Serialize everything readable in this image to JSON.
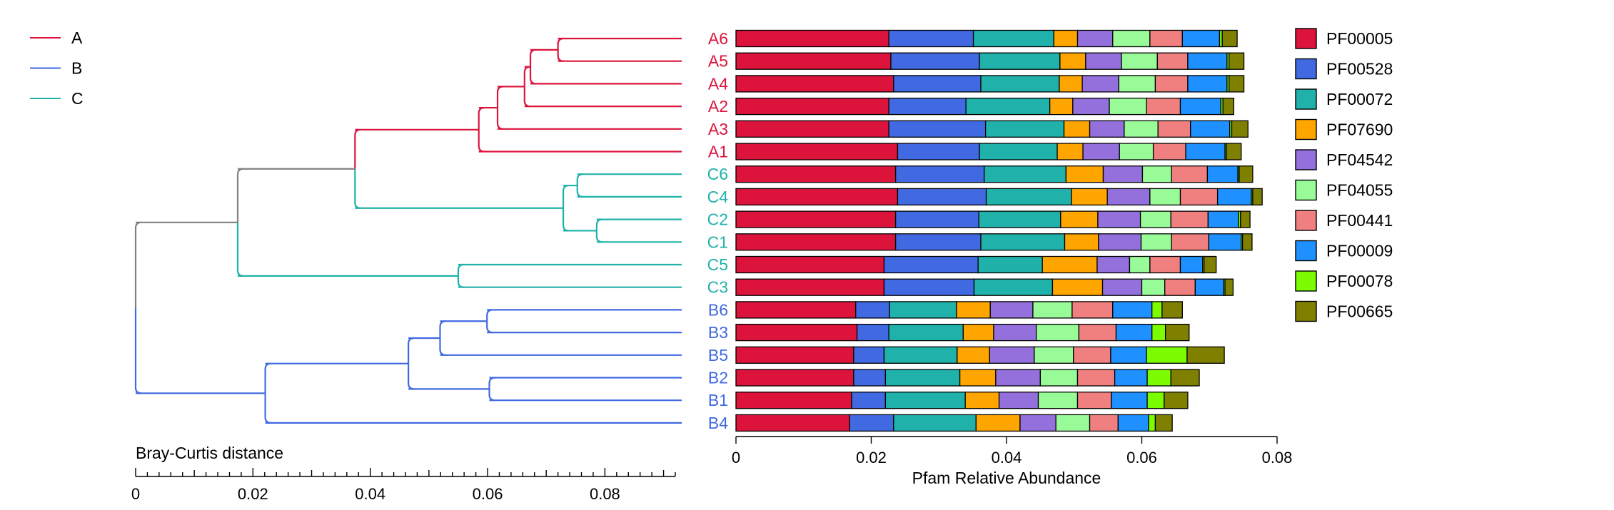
{
  "chart_data": [
    {
      "type": "dendrogram",
      "xlabel": "Bray-Curtis distance",
      "xlim": [
        0,
        0.092
      ],
      "xticks": [
        0,
        0.02,
        0.04,
        0.06,
        0.08
      ],
      "legend": {
        "position": "top-left",
        "entries": [
          {
            "name": "A",
            "color": "#DC143C"
          },
          {
            "name": "B",
            "color": "#4169E1"
          },
          {
            "name": "C",
            "color": "#20B2AA"
          }
        ]
      },
      "leaves": [
        "A6",
        "A5",
        "A4",
        "A2",
        "A3",
        "A1",
        "C6",
        "C4",
        "C2",
        "C1",
        "C5",
        "C3",
        "B6",
        "B3",
        "B5",
        "B2",
        "B1",
        "B4"
      ],
      "leaf_groups": [
        "A",
        "A",
        "A",
        "A",
        "A",
        "A",
        "C",
        "C",
        "C",
        "C",
        "C",
        "C",
        "B",
        "B",
        "B",
        "B",
        "B",
        "B"
      ],
      "merges": [
        {
          "id": "m1",
          "children": [
            "A6",
            "A5"
          ],
          "height": 0.072,
          "group": "A"
        },
        {
          "id": "m2",
          "children": [
            "m1",
            "A4"
          ],
          "height": 0.0673,
          "group": "A"
        },
        {
          "id": "m3",
          "children": [
            "m2",
            "A2"
          ],
          "height": 0.0663,
          "group": "A"
        },
        {
          "id": "m4",
          "children": [
            "m3",
            "A3"
          ],
          "height": 0.0617,
          "group": "A"
        },
        {
          "id": "m5",
          "children": [
            "m4",
            "A1"
          ],
          "height": 0.0585,
          "group": "A"
        },
        {
          "id": "m6",
          "children": [
            "C6",
            "C4"
          ],
          "height": 0.0753,
          "group": "C"
        },
        {
          "id": "m7",
          "children": [
            "C2",
            "C1"
          ],
          "height": 0.0786,
          "group": "C"
        },
        {
          "id": "m8",
          "children": [
            "m6",
            "m7"
          ],
          "height": 0.0729,
          "group": "C"
        },
        {
          "id": "m9",
          "children": [
            "C5",
            "C3"
          ],
          "height": 0.055,
          "group": "C"
        },
        {
          "id": "m10",
          "children": [
            "m5",
            "m8"
          ],
          "height": 0.0374,
          "group": "mixed"
        },
        {
          "id": "m11",
          "children": [
            "m10",
            "m9"
          ],
          "height": 0.0174,
          "group": "mixed"
        },
        {
          "id": "m12",
          "children": [
            "B6",
            "B3"
          ],
          "height": 0.0599,
          "group": "B"
        },
        {
          "id": "m13",
          "children": [
            "m12",
            "B5"
          ],
          "height": 0.0519,
          "group": "B"
        },
        {
          "id": "m14",
          "children": [
            "B2",
            "B1"
          ],
          "height": 0.0603,
          "group": "B"
        },
        {
          "id": "m15",
          "children": [
            "m13",
            "m14"
          ],
          "height": 0.0465,
          "group": "B"
        },
        {
          "id": "m16",
          "children": [
            "m15",
            "B4"
          ],
          "height": 0.0221,
          "group": "B"
        },
        {
          "id": "m17",
          "children": [
            "m11",
            "m16"
          ],
          "height": 0,
          "group": "mixed"
        }
      ]
    },
    {
      "type": "bar",
      "orientation": "horizontal",
      "stacked": true,
      "xlabel": "Pfam Relative Abundance",
      "xlim": [
        0,
        0.08
      ],
      "xticks": [
        0,
        0.02,
        0.04,
        0.06,
        0.08
      ],
      "legend": {
        "position": "right"
      },
      "categories": [
        "A6",
        "A5",
        "A4",
        "A2",
        "A3",
        "A1",
        "C6",
        "C4",
        "C2",
        "C1",
        "C5",
        "C3",
        "B6",
        "B3",
        "B5",
        "B2",
        "B1",
        "B4"
      ],
      "series": [
        {
          "name": "PF00005",
          "color": "#DC143C",
          "values": [
            0.0226,
            0.0229,
            0.0233,
            0.0226,
            0.0226,
            0.0239,
            0.0236,
            0.0239,
            0.0236,
            0.0236,
            0.0219,
            0.0219,
            0.0177,
            0.0179,
            0.0174,
            0.0174,
            0.0171,
            0.0168
          ]
        },
        {
          "name": "PF00528",
          "color": "#4169E1",
          "values": [
            0.0125,
            0.0131,
            0.0129,
            0.0114,
            0.0143,
            0.0121,
            0.0131,
            0.0131,
            0.0123,
            0.0126,
            0.0139,
            0.0133,
            0.005,
            0.0047,
            0.0045,
            0.0047,
            0.005,
            0.0065
          ]
        },
        {
          "name": "PF00072",
          "color": "#20B2AA",
          "values": [
            0.0119,
            0.0119,
            0.0116,
            0.0124,
            0.0116,
            0.0115,
            0.0121,
            0.0126,
            0.0121,
            0.0124,
            0.0095,
            0.0116,
            0.0099,
            0.011,
            0.0108,
            0.011,
            0.0118,
            0.0122
          ]
        },
        {
          "name": "PF07690",
          "color": "#FFA500",
          "values": [
            0.0035,
            0.0038,
            0.0034,
            0.0034,
            0.0038,
            0.0038,
            0.0055,
            0.0053,
            0.0055,
            0.005,
            0.0081,
            0.0074,
            0.005,
            0.0045,
            0.0048,
            0.0053,
            0.005,
            0.0065
          ]
        },
        {
          "name": "PF04542",
          "color": "#9370DB",
          "values": [
            0.0052,
            0.0053,
            0.0054,
            0.0054,
            0.0051,
            0.0054,
            0.0058,
            0.0063,
            0.0063,
            0.0063,
            0.0048,
            0.0058,
            0.0063,
            0.0063,
            0.0066,
            0.0066,
            0.0058,
            0.0053
          ]
        },
        {
          "name": "PF04055",
          "color": "#98FB98",
          "values": [
            0.0055,
            0.0053,
            0.0054,
            0.0055,
            0.005,
            0.005,
            0.0043,
            0.0045,
            0.0045,
            0.0045,
            0.003,
            0.0034,
            0.0058,
            0.0063,
            0.0058,
            0.0055,
            0.0058,
            0.005
          ]
        },
        {
          "name": "PF00441",
          "color": "#F08080",
          "values": [
            0.0048,
            0.0045,
            0.0048,
            0.005,
            0.0048,
            0.0048,
            0.0053,
            0.0055,
            0.0055,
            0.0055,
            0.0045,
            0.0045,
            0.006,
            0.0055,
            0.0055,
            0.0055,
            0.005,
            0.0042
          ]
        },
        {
          "name": "PF00009",
          "color": "#1E90FF",
          "values": [
            0.0055,
            0.0058,
            0.0058,
            0.006,
            0.0058,
            0.0058,
            0.0045,
            0.005,
            0.0045,
            0.0048,
            0.0033,
            0.0042,
            0.0058,
            0.0053,
            0.0053,
            0.0048,
            0.0053,
            0.0045
          ]
        },
        {
          "name": "PF00078",
          "color": "#7CFC00",
          "values": [
            0.0004,
            0.0003,
            0.0003,
            0.0003,
            0.0003,
            0.0002,
            0.0002,
            0.0002,
            0.0003,
            0.0002,
            0.0002,
            0.0002,
            0.0015,
            0.002,
            0.006,
            0.0035,
            0.0025,
            0.001
          ]
        },
        {
          "name": "PF00665",
          "color": "#808000",
          "values": [
            0.0022,
            0.0022,
            0.0022,
            0.0016,
            0.0024,
            0.0022,
            0.002,
            0.0014,
            0.0014,
            0.0014,
            0.0018,
            0.0012,
            0.003,
            0.0035,
            0.0055,
            0.0042,
            0.0035,
            0.0025
          ]
        }
      ]
    }
  ]
}
